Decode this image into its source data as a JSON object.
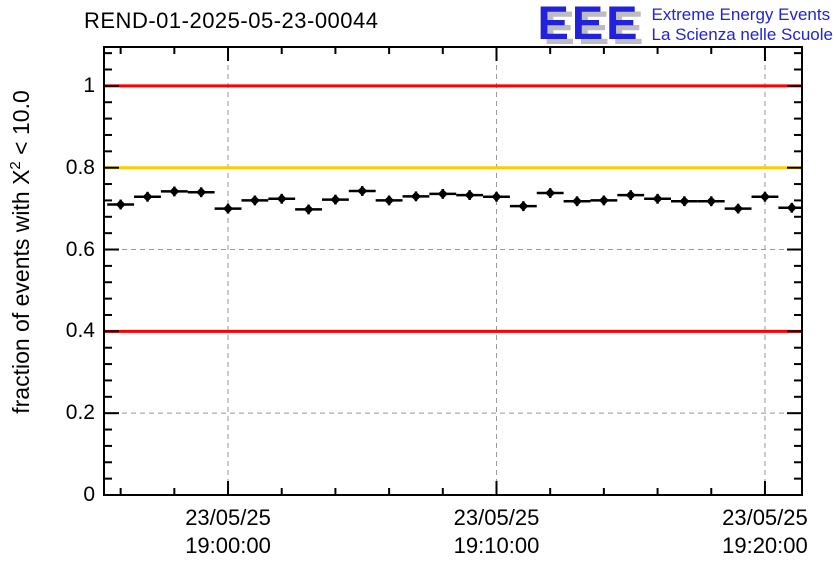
{
  "logo": {
    "letters": "EEE",
    "line1": "Extreme Energy Events",
    "line2": "La Scienza nelle Scuole",
    "blue": "#2222dd",
    "shadow_gray": "#bdbdbd"
  },
  "chart_data": {
    "type": "scatter",
    "title": "REND-01-2025-05-23-00044",
    "ylabel": "fraction of events with X² < 10.0",
    "ylabel_parts": [
      "fraction of events with X",
      "2",
      " < 10.0"
    ],
    "xlabel": "",
    "x_unit": "minutes relative to 23/05/25 19:00:00",
    "xlim": [
      -4.62,
      21.38
    ],
    "ylim": [
      0,
      1.095
    ],
    "grid": true,
    "grid_color": "#999999",
    "y_major_ticks": [
      0,
      0.2,
      0.4,
      0.6,
      0.8,
      1
    ],
    "y_tick_labels": [
      "0",
      "0.2",
      "0.4",
      "0.6",
      "0.8",
      "1"
    ],
    "y_minor_step": 0.04,
    "x_major_ticks": [
      0,
      10,
      20
    ],
    "x_tick_labels": [
      [
        "23/05/25",
        "19:00:00"
      ],
      [
        "23/05/25",
        "19:10:00"
      ],
      [
        "23/05/25",
        "19:20:00"
      ]
    ],
    "x_minor_step": 2,
    "reference_lines": [
      {
        "y": 1.0,
        "color": "#ff0000"
      },
      {
        "y": 0.8,
        "color": "#ffcc00"
      },
      {
        "y": 0.4,
        "color": "#ff0000"
      }
    ],
    "series": [
      {
        "name": "fraction of events with chi2 < 10.0 per minute",
        "marker": "diamond",
        "color": "#000000",
        "bin_halfwidth_minutes": 0.5,
        "y_error": 0.012,
        "points": [
          [
            -4,
            0.71
          ],
          [
            -3,
            0.729
          ],
          [
            -2,
            0.742
          ],
          [
            -1,
            0.74
          ],
          [
            0,
            0.7
          ],
          [
            1,
            0.72
          ],
          [
            2,
            0.724
          ],
          [
            3,
            0.698
          ],
          [
            4,
            0.722
          ],
          [
            5,
            0.743
          ],
          [
            6,
            0.72
          ],
          [
            7,
            0.73
          ],
          [
            8,
            0.736
          ],
          [
            9,
            0.733
          ],
          [
            10,
            0.729
          ],
          [
            11,
            0.706
          ],
          [
            12,
            0.738
          ],
          [
            13,
            0.718
          ],
          [
            14,
            0.72
          ],
          [
            15,
            0.733
          ],
          [
            16,
            0.724
          ],
          [
            17,
            0.718
          ],
          [
            18,
            0.718
          ],
          [
            19,
            0.7
          ],
          [
            20,
            0.729
          ],
          [
            21,
            0.702
          ]
        ]
      }
    ]
  }
}
